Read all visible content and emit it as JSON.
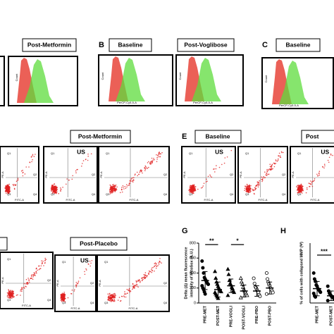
{
  "panels": {
    "a_post": "Post-Metformin",
    "b_letter": "B",
    "b_base": "Baseline",
    "b_post": "Post-Voglibose",
    "c_letter": "C",
    "c_base": "Baseline",
    "d_post": "Post-Metformin",
    "e_letter": "E",
    "e_base": "Baseline",
    "e_post": "Post",
    "f_post": "Post-Placebo",
    "g_letter": "G",
    "h_letter": "H"
  },
  "flow_labels": {
    "count": "Count",
    "percp": "PerCP-Cy5-5-A",
    "us": "US",
    "q1": "Q1",
    "q2": "Q2",
    "q3": "Q3",
    "q4": "Q4",
    "pe": "PE-A",
    "fitc": "FITC-A"
  },
  "chart_data": [
    {
      "type": "dot",
      "ylabel": [
        "Delta (Δ) mean fluorescence",
        "intensity of MitoSox (A.U.)"
      ],
      "categories": [
        "PRE-MET",
        "POST-MET",
        "PRE-VOGLI",
        "POST-VOGLI",
        "PRE-PBO",
        "POST-PBO"
      ],
      "markers": [
        "circle",
        "triangle",
        "triangle",
        "triangle-open",
        "circle-open",
        "circle-open"
      ],
      "points": [
        [
          560,
          470,
          400,
          340,
          320,
          300,
          280,
          260,
          250,
          230,
          200,
          180,
          150,
          120
        ],
        [
          420,
          330,
          280,
          250,
          220,
          200,
          180,
          160,
          150,
          140,
          120,
          100,
          80,
          60
        ],
        [
          450,
          380,
          300,
          260,
          240,
          210,
          190,
          160,
          140,
          100
        ],
        [
          330,
          280,
          250,
          210,
          180,
          160,
          140,
          120,
          100,
          70
        ],
        [
          330,
          260,
          220,
          200,
          180,
          160,
          140,
          110,
          90
        ],
        [
          400,
          320,
          280,
          250,
          230,
          200,
          180,
          160,
          140,
          120
        ]
      ],
      "means": [
        300,
        180,
        230,
        160,
        160,
        200
      ],
      "errors": [
        120,
        100,
        90,
        80,
        70,
        80
      ],
      "annotations": [
        {
          "text": "**",
          "between": [
            0,
            1
          ],
          "at": 780
        },
        {
          "text": "*",
          "between": [
            2,
            3
          ],
          "at": 780
        }
      ],
      "ylim": [
        0,
        800
      ],
      "yticks": [
        0,
        200,
        400,
        600,
        800
      ]
    },
    {
      "type": "dot",
      "ylabel": [
        "% of cells with collapsed MMP (Ψ)"
      ],
      "categories": [
        "PRE-MET",
        "POST-MET"
      ],
      "markers": [
        "circle",
        "circle"
      ],
      "points": [
        [
          25,
          20,
          18,
          15,
          14,
          12,
          11,
          10,
          9,
          8,
          6,
          5
        ],
        [
          14,
          10,
          8,
          7,
          6,
          5,
          5,
          4,
          3,
          2
        ]
      ],
      "means": [
        12,
        6
      ],
      "errors": [
        6,
        4
      ],
      "annotations": [
        {
          "text": "***",
          "between": [
            0,
            1
          ],
          "at": 40
        }
      ],
      "ylim": [
        0,
        50
      ]
    }
  ]
}
